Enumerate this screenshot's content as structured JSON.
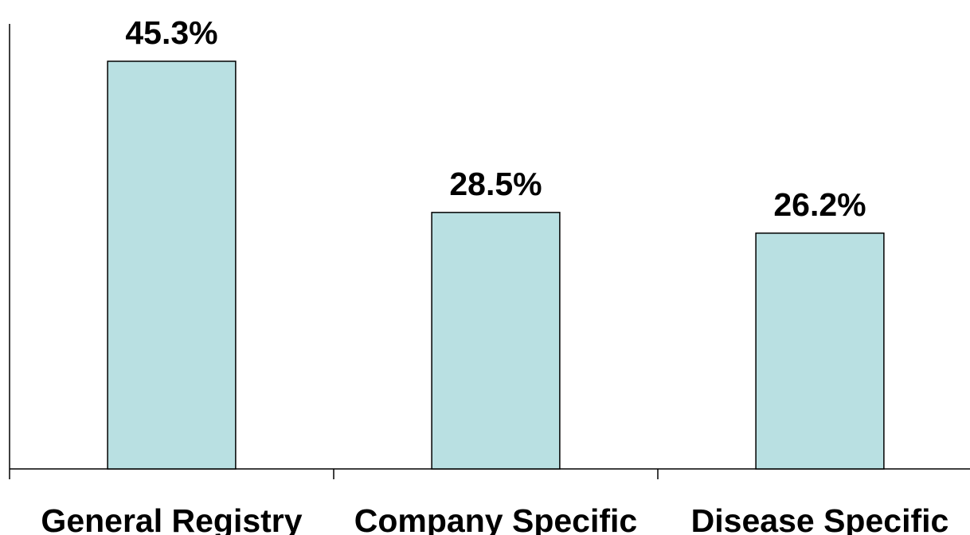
{
  "chart_data": {
    "type": "bar",
    "title": "",
    "xlabel": "",
    "ylabel": "",
    "categories": [
      "General Registry",
      "Company Specific",
      "Disease Specific"
    ],
    "values": [
      45.3,
      28.5,
      26.2
    ],
    "data_labels": [
      "45.3%",
      "28.5%",
      "26.2%"
    ],
    "ylim": [
      0,
      46.8
    ],
    "grid": false,
    "legend": "none",
    "bar_color": "#b9e0e2",
    "bar_stroke": "#000000"
  }
}
